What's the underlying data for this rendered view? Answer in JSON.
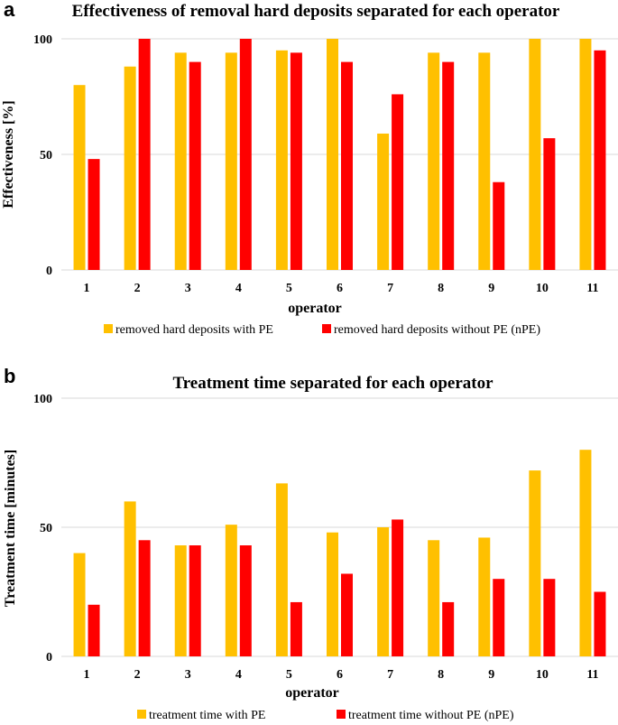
{
  "colors": {
    "pe": "#FFC000",
    "npe": "#FF0000",
    "grid": "#D9D9D9"
  },
  "chart_data": [
    {
      "panel": "a",
      "type": "bar",
      "title": "Effectiveness of removal hard deposits separated for each operator",
      "xlabel": "operator",
      "ylabel": "Effectiveness [%]",
      "ylim": [
        0,
        100
      ],
      "yticks": [
        "0",
        "50",
        "100"
      ],
      "categories": [
        "1",
        "2",
        "3",
        "4",
        "5",
        "6",
        "7",
        "8",
        "9",
        "10",
        "11"
      ],
      "series": [
        {
          "name": "removed hard deposits with PE",
          "color": "#FFC000",
          "values": [
            80,
            88,
            94,
            94,
            95,
            100,
            59,
            94,
            94,
            100,
            100
          ]
        },
        {
          "name": "removed hard deposits without PE (nPE)",
          "color": "#FF0000",
          "values": [
            48,
            100,
            90,
            100,
            94,
            90,
            76,
            90,
            38,
            57,
            95
          ]
        }
      ],
      "legend": "bottom"
    },
    {
      "panel": "b",
      "type": "bar",
      "title": "Treatment time separated for each operator",
      "xlabel": "operator",
      "ylabel": "Treatment time [minutes]",
      "ylim": [
        0,
        100
      ],
      "yticks": [
        "0",
        "50",
        "100"
      ],
      "categories": [
        "1",
        "2",
        "3",
        "4",
        "5",
        "6",
        "7",
        "8",
        "9",
        "10",
        "11"
      ],
      "series": [
        {
          "name": "treatment time with PE",
          "color": "#FFC000",
          "values": [
            40,
            60,
            43,
            51,
            67,
            48,
            50,
            45,
            46,
            72,
            80
          ]
        },
        {
          "name": "treatment time without PE (nPE)",
          "color": "#FF0000",
          "values": [
            20,
            45,
            43,
            43,
            21,
            32,
            53,
            21,
            30,
            30,
            25
          ]
        }
      ],
      "legend": "bottom"
    }
  ]
}
